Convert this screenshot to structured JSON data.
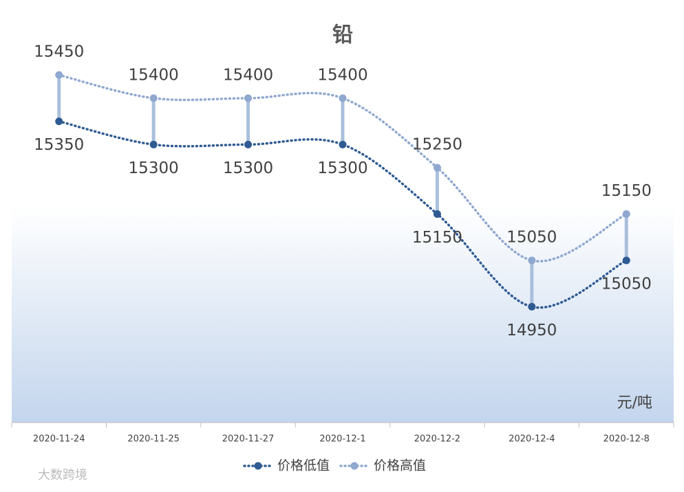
{
  "chart_data": {
    "type": "line",
    "title": "铅",
    "unit_label": "元/吨",
    "watermark": "大数跨境",
    "categories": [
      "2020-11-24",
      "2020-11-25",
      "2020-11-27",
      "2020-12-1",
      "2020-12-2",
      "2020-12-4",
      "2020-12-8"
    ],
    "series": [
      {
        "name": "价格低值",
        "color": "#2f5b93",
        "values": [
          15350,
          15300,
          15300,
          15300,
          15150,
          14950,
          15050
        ]
      },
      {
        "name": "价格高值",
        "color": "#8fa8cf",
        "values": [
          15450,
          15400,
          15400,
          15400,
          15250,
          15050,
          15150
        ]
      }
    ],
    "ylim": [
      14700,
      15600
    ],
    "high_low_lines": true,
    "legend": "bottom"
  }
}
